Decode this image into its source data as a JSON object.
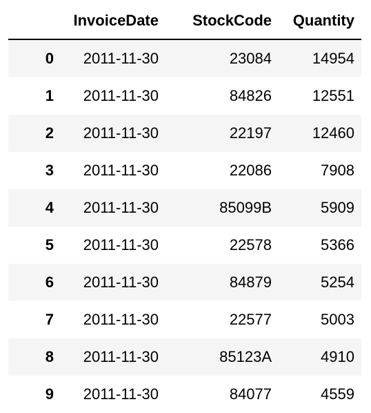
{
  "table": {
    "columns": [
      "",
      "InvoiceDate",
      "StockCode",
      "Quantity"
    ],
    "rows": [
      {
        "index": "0",
        "InvoiceDate": "2011-11-30",
        "StockCode": "23084",
        "Quantity": "14954"
      },
      {
        "index": "1",
        "InvoiceDate": "2011-11-30",
        "StockCode": "84826",
        "Quantity": "12551"
      },
      {
        "index": "2",
        "InvoiceDate": "2011-11-30",
        "StockCode": "22197",
        "Quantity": "12460"
      },
      {
        "index": "3",
        "InvoiceDate": "2011-11-30",
        "StockCode": "22086",
        "Quantity": "7908"
      },
      {
        "index": "4",
        "InvoiceDate": "2011-11-30",
        "StockCode": "85099B",
        "Quantity": "5909"
      },
      {
        "index": "5",
        "InvoiceDate": "2011-11-30",
        "StockCode": "22578",
        "Quantity": "5366"
      },
      {
        "index": "6",
        "InvoiceDate": "2011-11-30",
        "StockCode": "84879",
        "Quantity": "5254"
      },
      {
        "index": "7",
        "InvoiceDate": "2011-11-30",
        "StockCode": "22577",
        "Quantity": "5003"
      },
      {
        "index": "8",
        "InvoiceDate": "2011-11-30",
        "StockCode": "85123A",
        "Quantity": "4910"
      },
      {
        "index": "9",
        "InvoiceDate": "2011-11-30",
        "StockCode": "84077",
        "Quantity": "4559"
      }
    ]
  }
}
